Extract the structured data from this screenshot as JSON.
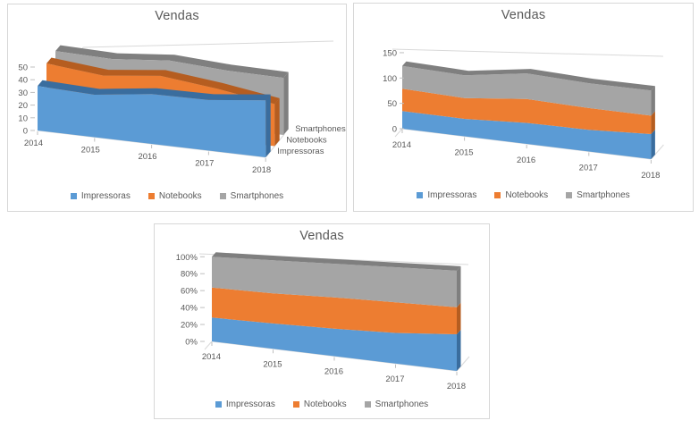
{
  "chart_data": [
    {
      "id": "area3d",
      "type": "area",
      "subtype": "3d-area",
      "title": "Vendas",
      "categories": [
        "2014",
        "2015",
        "2016",
        "2017",
        "2018"
      ],
      "series": [
        {
          "name": "Impressoras",
          "values": [
            35,
            32,
            36,
            35,
            38
          ],
          "color": "#5B9BD5",
          "color_dark": "#3A6D9E"
        },
        {
          "name": "Notebooks",
          "values": [
            44,
            38,
            41,
            35,
            28
          ],
          "color": "#ED7D31",
          "color_dark": "#B55D20"
        },
        {
          "name": "Smartphones",
          "values": [
            45,
            42,
            44,
            40,
            38
          ],
          "color": "#A5A5A5",
          "color_dark": "#7F7F7F"
        }
      ],
      "y_axis": {
        "min": 0,
        "max": 50,
        "tick_step": 10,
        "tick_labels": [
          "0",
          "10",
          "20",
          "30",
          "40",
          "50"
        ]
      },
      "series_axis_labels": [
        "Impressoras",
        "Notebooks",
        "Smartphones"
      ],
      "legend": {
        "position": "bottom",
        "labels": [
          "Impressoras",
          "Notebooks",
          "Smartphones"
        ]
      },
      "grid": "top-gridline-only"
    },
    {
      "id": "stacked_area3d",
      "type": "area",
      "subtype": "3d-stacked-area",
      "title": "Vendas",
      "categories": [
        "2014",
        "2015",
        "2016",
        "2017",
        "2018"
      ],
      "series": [
        {
          "name": "Impressoras",
          "values": [
            35,
            32,
            36,
            35,
            38
          ],
          "color": "#5B9BD5",
          "color_dark": "#3A6D9E"
        },
        {
          "name": "Notebooks",
          "values": [
            44,
            38,
            41,
            35,
            28
          ],
          "color": "#ED7D31",
          "color_dark": "#B55D20"
        },
        {
          "name": "Smartphones",
          "values": [
            45,
            42,
            44,
            40,
            38
          ],
          "color": "#A5A5A5",
          "color_dark": "#7F7F7F"
        }
      ],
      "stack_totals": [
        124,
        112,
        121,
        110,
        104
      ],
      "y_axis": {
        "min": 0,
        "max": 150,
        "tick_step": 50,
        "tick_labels": [
          "0",
          "50",
          "100",
          "150"
        ]
      },
      "legend": {
        "position": "bottom",
        "labels": [
          "Impressoras",
          "Notebooks",
          "Smartphones"
        ]
      },
      "grid": "top-gridline-only"
    },
    {
      "id": "percent_stacked_area3d",
      "type": "area",
      "subtype": "3d-100pct-stacked-area",
      "title": "Vendas",
      "categories": [
        "2014",
        "2015",
        "2016",
        "2017",
        "2018"
      ],
      "series": [
        {
          "name": "Impressoras",
          "values": [
            35,
            32,
            36,
            35,
            38
          ],
          "percent_of_total": [
            28.2,
            28.6,
            29.8,
            31.8,
            36.5
          ],
          "color": "#5B9BD5",
          "color_dark": "#3A6D9E"
        },
        {
          "name": "Notebooks",
          "values": [
            44,
            38,
            41,
            35,
            28
          ],
          "percent_of_total": [
            35.5,
            33.9,
            33.9,
            31.8,
            26.9
          ],
          "color": "#ED7D31",
          "color_dark": "#B55D20"
        },
        {
          "name": "Smartphones",
          "values": [
            45,
            42,
            44,
            40,
            38
          ],
          "percent_of_total": [
            36.3,
            37.5,
            36.3,
            36.4,
            36.6
          ],
          "color": "#A5A5A5",
          "color_dark": "#7F7F7F"
        }
      ],
      "y_axis": {
        "min": 0,
        "max": 100,
        "tick_step": 20,
        "tick_labels": [
          "0%",
          "20%",
          "40%",
          "60%",
          "80%",
          "100%"
        ]
      },
      "legend": {
        "position": "bottom",
        "labels": [
          "Impressoras",
          "Notebooks",
          "Smartphones"
        ]
      },
      "grid": "top-gridline-only"
    }
  ],
  "colors": {
    "text": "#595959",
    "scaffold": "#D9D9D9",
    "ticks": "#BFBFBF",
    "panel_border": "#D7D7D7",
    "background": "#FFFFFF"
  }
}
